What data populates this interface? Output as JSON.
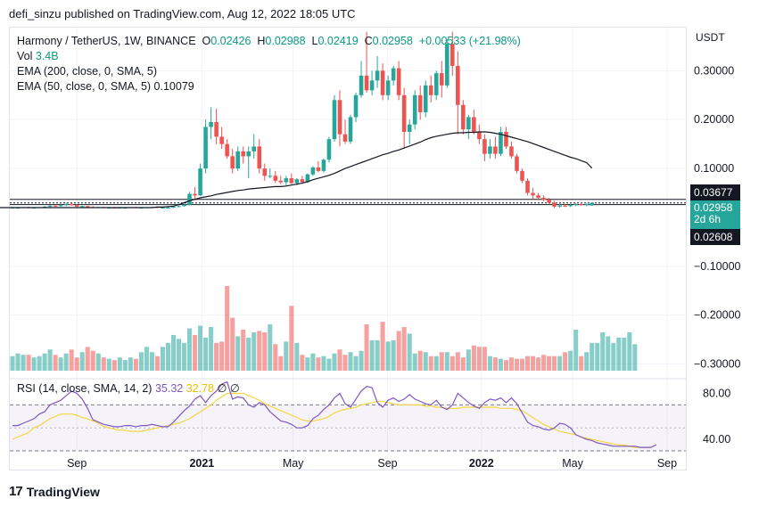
{
  "header": {
    "published": "defi_sinzu published on TradingView.com, Aug 12, 2022 18:05 UTC"
  },
  "legend": {
    "symbol": "Harmony / TetherUS, 1W, BINANCE",
    "o_label": "O",
    "o_value": "0.02426",
    "h_label": "H",
    "h_value": "0.02988",
    "l_label": "L",
    "l_value": "0.02419",
    "c_label": "C",
    "c_value": "0.02958",
    "change": "+0.00533 (+21.98%)",
    "vol_label": "Vol",
    "vol_value": "3.4B",
    "ema200_label": "EMA (200, close, 0, SMA, 5)",
    "ema50_label": "EMA (50, close, 0, SMA, 5)",
    "ema50_value": "0.10079"
  },
  "rsi_legend": {
    "label": "RSI (14, close, SMA, 14, 2)",
    "rsi_value": "35.32",
    "sma_value": "32.78",
    "extra": "∅ ∅"
  },
  "price_axis": {
    "unit": "USDT"
  },
  "price_tags": {
    "upper": "0.03677",
    "current": "0.02958",
    "countdown": "2d 6h",
    "lower": "0.02608"
  },
  "colors": {
    "up": "#26a69a",
    "down": "#ef5350",
    "ema50": "#131722",
    "rsi": "#7e57c2",
    "rsi_ma": "#f5d63d"
  },
  "footer": {
    "brand": "TradingView"
  },
  "chart_data": [
    {
      "type": "candlestick",
      "title": "Harmony / TetherUS, 1W, BINANCE",
      "ylabel": "USDT",
      "y_ticks": [
        0.3,
        0.2,
        0.1,
        -0.1,
        -0.2,
        -0.3
      ],
      "y_tick_labels": [
        "0.30000",
        "0.20000",
        "0.10000",
        "−0.10000",
        "−0.20000",
        "−0.30000"
      ],
      "ylim": [
        -0.33,
        0.39
      ],
      "x_tick_labels": [
        "Sep",
        "2021",
        "May",
        "Sep",
        "2022",
        "May",
        "Sep"
      ],
      "x_ticks": [
        12,
        35.3,
        52.3,
        69.9,
        87.4,
        104.4,
        122
      ],
      "candles": [
        [
          0.02,
          0.021,
          0.019,
          0.02
        ],
        [
          0.02,
          0.021,
          0.019,
          0.02
        ],
        [
          0.02,
          0.021,
          0.019,
          0.021
        ],
        [
          0.021,
          0.022,
          0.019,
          0.019
        ],
        [
          0.019,
          0.021,
          0.018,
          0.02
        ],
        [
          0.02,
          0.021,
          0.019,
          0.021
        ],
        [
          0.021,
          0.023,
          0.02,
          0.022
        ],
        [
          0.022,
          0.025,
          0.021,
          0.024
        ],
        [
          0.024,
          0.026,
          0.022,
          0.023
        ],
        [
          0.023,
          0.026,
          0.022,
          0.025
        ],
        [
          0.025,
          0.03,
          0.023,
          0.027
        ],
        [
          0.027,
          0.029,
          0.024,
          0.025
        ],
        [
          0.025,
          0.027,
          0.021,
          0.022
        ],
        [
          0.022,
          0.024,
          0.02,
          0.023
        ],
        [
          0.023,
          0.024,
          0.02,
          0.021
        ],
        [
          0.021,
          0.023,
          0.019,
          0.02
        ],
        [
          0.02,
          0.022,
          0.019,
          0.021
        ],
        [
          0.021,
          0.022,
          0.019,
          0.02
        ],
        [
          0.02,
          0.021,
          0.019,
          0.02
        ],
        [
          0.02,
          0.021,
          0.018,
          0.019
        ],
        [
          0.019,
          0.021,
          0.018,
          0.02
        ],
        [
          0.02,
          0.021,
          0.019,
          0.02
        ],
        [
          0.02,
          0.021,
          0.019,
          0.021
        ],
        [
          0.021,
          0.022,
          0.02,
          0.02
        ],
        [
          0.02,
          0.021,
          0.019,
          0.02
        ],
        [
          0.02,
          0.021,
          0.019,
          0.021
        ],
        [
          0.021,
          0.022,
          0.02,
          0.021
        ],
        [
          0.021,
          0.022,
          0.02,
          0.02
        ],
        [
          0.02,
          0.021,
          0.019,
          0.02
        ],
        [
          0.02,
          0.021,
          0.019,
          0.02
        ],
        [
          0.02,
          0.022,
          0.019,
          0.022
        ],
        [
          0.022,
          0.024,
          0.021,
          0.023
        ],
        [
          0.023,
          0.028,
          0.022,
          0.026
        ],
        [
          0.026,
          0.052,
          0.025,
          0.048
        ],
        [
          0.048,
          0.062,
          0.035,
          0.045
        ],
        [
          0.045,
          0.11,
          0.044,
          0.1
        ],
        [
          0.1,
          0.2,
          0.09,
          0.185
        ],
        [
          0.185,
          0.225,
          0.16,
          0.195
        ],
        [
          0.195,
          0.222,
          0.15,
          0.165
        ],
        [
          0.165,
          0.185,
          0.14,
          0.15
        ],
        [
          0.15,
          0.16,
          0.12,
          0.125
        ],
        [
          0.125,
          0.14,
          0.09,
          0.1
        ],
        [
          0.1,
          0.145,
          0.095,
          0.135
        ],
        [
          0.135,
          0.145,
          0.11,
          0.125
        ],
        [
          0.125,
          0.145,
          0.08,
          0.135
        ],
        [
          0.135,
          0.17,
          0.12,
          0.145
        ],
        [
          0.145,
          0.16,
          0.09,
          0.1
        ],
        [
          0.1,
          0.11,
          0.075,
          0.085
        ],
        [
          0.085,
          0.1,
          0.08,
          0.085
        ],
        [
          0.085,
          0.095,
          0.07,
          0.075
        ],
        [
          0.075,
          0.085,
          0.068,
          0.072
        ],
        [
          0.072,
          0.085,
          0.065,
          0.08
        ],
        [
          0.08,
          0.09,
          0.068,
          0.07
        ],
        [
          0.07,
          0.08,
          0.066,
          0.078
        ],
        [
          0.078,
          0.085,
          0.07,
          0.072
        ],
        [
          0.072,
          0.09,
          0.07,
          0.088
        ],
        [
          0.088,
          0.105,
          0.085,
          0.102
        ],
        [
          0.102,
          0.115,
          0.092,
          0.095
        ],
        [
          0.095,
          0.12,
          0.092,
          0.118
        ],
        [
          0.118,
          0.165,
          0.112,
          0.16
        ],
        [
          0.16,
          0.25,
          0.155,
          0.24
        ],
        [
          0.24,
          0.26,
          0.145,
          0.17
        ],
        [
          0.17,
          0.2,
          0.15,
          0.155
        ],
        [
          0.155,
          0.21,
          0.15,
          0.205
        ],
        [
          0.205,
          0.255,
          0.195,
          0.25
        ],
        [
          0.25,
          0.32,
          0.245,
          0.29
        ],
        [
          0.29,
          0.38,
          0.255,
          0.26
        ],
        [
          0.26,
          0.3,
          0.25,
          0.28
        ],
        [
          0.28,
          0.33,
          0.265,
          0.3
        ],
        [
          0.3,
          0.315,
          0.24,
          0.25
        ],
        [
          0.25,
          0.29,
          0.24,
          0.28
        ],
        [
          0.28,
          0.31,
          0.27,
          0.305
        ],
        [
          0.305,
          0.32,
          0.24,
          0.25
        ],
        [
          0.25,
          0.265,
          0.14,
          0.175
        ],
        [
          0.175,
          0.2,
          0.15,
          0.19
        ],
        [
          0.19,
          0.26,
          0.18,
          0.25
        ],
        [
          0.25,
          0.27,
          0.2,
          0.215
        ],
        [
          0.215,
          0.28,
          0.205,
          0.27
        ],
        [
          0.27,
          0.29,
          0.235,
          0.25
        ],
        [
          0.25,
          0.3,
          0.24,
          0.295
        ],
        [
          0.295,
          0.32,
          0.245,
          0.27
        ],
        [
          0.27,
          0.365,
          0.265,
          0.355
        ],
        [
          0.355,
          0.38,
          0.29,
          0.31
        ],
        [
          0.31,
          0.34,
          0.17,
          0.23
        ],
        [
          0.23,
          0.24,
          0.17,
          0.18
        ],
        [
          0.18,
          0.21,
          0.16,
          0.205
        ],
        [
          0.205,
          0.22,
          0.17,
          0.175
        ],
        [
          0.175,
          0.19,
          0.15,
          0.16
        ],
        [
          0.16,
          0.17,
          0.115,
          0.13
        ],
        [
          0.13,
          0.16,
          0.12,
          0.145
        ],
        [
          0.145,
          0.165,
          0.12,
          0.13
        ],
        [
          0.13,
          0.185,
          0.125,
          0.175
        ],
        [
          0.175,
          0.185,
          0.14,
          0.145
        ],
        [
          0.145,
          0.155,
          0.12,
          0.125
        ],
        [
          0.125,
          0.13,
          0.09,
          0.095
        ],
        [
          0.095,
          0.1,
          0.07,
          0.075
        ],
        [
          0.075,
          0.08,
          0.045,
          0.05
        ],
        [
          0.05,
          0.06,
          0.038,
          0.045
        ],
        [
          0.045,
          0.05,
          0.035,
          0.04
        ],
        [
          0.04,
          0.045,
          0.033,
          0.036
        ],
        [
          0.036,
          0.04,
          0.028,
          0.03
        ],
        [
          0.03,
          0.034,
          0.019,
          0.022
        ],
        [
          0.022,
          0.028,
          0.02,
          0.024
        ],
        [
          0.024,
          0.028,
          0.021,
          0.023
        ],
        [
          0.023,
          0.027,
          0.021,
          0.025
        ],
        [
          0.025,
          0.029,
          0.023,
          0.027
        ],
        [
          0.027,
          0.03,
          0.024,
          0.026
        ],
        [
          0.026,
          0.029,
          0.023,
          0.027
        ],
        [
          0.02426,
          0.02988,
          0.02419,
          0.02958
        ]
      ],
      "ema50": [
        0.02,
        0.02,
        0.02,
        0.02,
        0.02,
        0.02,
        0.02,
        0.02,
        0.02,
        0.02,
        0.02,
        0.02,
        0.02,
        0.02,
        0.02,
        0.02,
        0.02,
        0.02,
        0.02,
        0.02,
        0.02,
        0.02,
        0.02,
        0.02,
        0.02,
        0.02,
        0.02,
        0.02,
        0.02,
        0.02,
        0.02,
        0.021,
        0.021,
        0.022,
        0.023,
        0.026,
        0.03,
        0.034,
        0.037,
        0.04,
        0.042,
        0.044,
        0.047,
        0.049,
        0.051,
        0.053,
        0.055,
        0.056,
        0.058,
        0.059,
        0.06,
        0.061,
        0.062,
        0.063,
        0.063,
        0.064,
        0.066,
        0.068,
        0.07,
        0.073,
        0.077,
        0.08,
        0.083,
        0.086,
        0.09,
        0.095,
        0.1,
        0.104,
        0.108,
        0.112,
        0.116,
        0.12,
        0.124,
        0.128,
        0.131,
        0.135,
        0.138,
        0.142,
        0.146,
        0.15,
        0.154,
        0.159,
        0.163,
        0.166,
        0.168,
        0.17,
        0.172,
        0.173,
        0.173,
        0.174,
        0.174,
        0.175,
        0.175,
        0.174,
        0.172,
        0.17,
        0.167,
        0.164,
        0.161,
        0.158,
        0.155,
        0.151,
        0.147,
        0.143,
        0.139,
        0.135,
        0.131,
        0.127,
        0.123,
        0.12,
        0.116,
        0.112,
        0.10079
      ]
    },
    {
      "type": "bar",
      "title": "Vol",
      "values": [
        1.1,
        1.3,
        1.2,
        1.2,
        1.0,
        1.1,
        1.3,
        1.6,
        1.2,
        1.0,
        1.3,
        1.6,
        1.0,
        1.4,
        1.8,
        1.5,
        1.3,
        1.0,
        0.9,
        0.8,
        1.0,
        0.8,
        1.0,
        0.9,
        1.4,
        1.8,
        1.4,
        1.1,
        1.8,
        2.1,
        2.7,
        2.4,
        2.1,
        3.2,
        2.7,
        3.4,
        2.5,
        3.3,
        2.1,
        2.2,
        6.4,
        4.0,
        2.6,
        3.1,
        2.5,
        2.9,
        3.0,
        2.9,
        3.5,
        2.0,
        1.1,
        2.2,
        4.9,
        2.1,
        1.2,
        1.0,
        1.3,
        1.0,
        1.1,
        0.9,
        1.3,
        1.6,
        1.2,
        1.4,
        1.1,
        1.5,
        3.5,
        2.3,
        2.3,
        3.7,
        2.2,
        2.3,
        3.0,
        3.3,
        2.8,
        1.3,
        1.5,
        1.4,
        1.1,
        1.1,
        1.4,
        1.4,
        1.1,
        1.4,
        1.0,
        1.6,
        1.9,
        1.8,
        1.8,
        1.1,
        1.0,
        0.9,
        0.8,
        1.0,
        0.9,
        0.9,
        1.1,
        1.1,
        1.0,
        1.2,
        1.1,
        1.1,
        1.1,
        1.4,
        1.5,
        3.1,
        1.1,
        1.4,
        2.1,
        2.1,
        2.9,
        2.6,
        2.1,
        2.5,
        2.5,
        2.9,
        2.0
      ]
    },
    {
      "type": "line",
      "title": "RSI (14, close, SMA, 14, 2)",
      "y_ticks": [
        80,
        40
      ],
      "y_tick_labels": [
        "80.00",
        "40.00"
      ],
      "ylim": [
        30,
        92
      ],
      "band": [
        70,
        30
      ],
      "series": [
        {
          "values": [
            52,
            52,
            54,
            56,
            58,
            62,
            64,
            70,
            72,
            74,
            78,
            82,
            80,
            75,
            67,
            57,
            55,
            53,
            52,
            51,
            51,
            52,
            52,
            51,
            52,
            52,
            53,
            52,
            51,
            51,
            55,
            60,
            65,
            69,
            75,
            78,
            72,
            78,
            82,
            88,
            90,
            75,
            77,
            76,
            70,
            68,
            72,
            70,
            64,
            60,
            56,
            55,
            53,
            50,
            50,
            52,
            58,
            61,
            66,
            70,
            76,
            80,
            71,
            68,
            75,
            82,
            86,
            85,
            72,
            68,
            74,
            76,
            73,
            75,
            79,
            75,
            73,
            71,
            70,
            74,
            68,
            66,
            70,
            80,
            76,
            72,
            69,
            67,
            72,
            75,
            74,
            76,
            72,
            76,
            71,
            63,
            55,
            52,
            51,
            49,
            48,
            50,
            54,
            53,
            50,
            44,
            42,
            40,
            39,
            37,
            36,
            35,
            34,
            34,
            34,
            34,
            34,
            33,
            33,
            33,
            35.32
          ]
        },
        {
          "values": [
            40,
            42,
            44,
            46,
            50,
            52,
            55,
            58,
            60,
            62,
            62,
            62,
            61,
            59,
            58,
            56,
            54,
            51,
            50,
            49,
            48,
            48,
            47,
            47,
            47,
            48,
            49,
            50,
            51,
            52,
            53,
            54,
            56,
            58,
            61,
            64,
            67,
            70,
            74,
            77,
            80,
            80,
            80,
            80,
            78,
            76,
            74,
            71,
            69,
            67,
            65,
            63,
            61,
            59,
            57,
            56,
            56,
            57,
            58,
            60,
            63,
            65,
            66,
            67,
            68,
            70,
            71,
            72,
            73,
            73,
            72,
            71,
            70,
            70,
            70,
            70,
            70,
            69,
            69,
            68,
            68,
            67,
            67,
            67,
            68,
            68,
            68,
            68,
            68,
            68,
            68,
            67,
            67,
            67,
            66,
            65,
            62,
            59,
            56,
            53,
            51,
            49,
            47,
            46,
            45,
            44,
            42,
            41,
            40,
            39,
            38,
            37,
            36,
            35,
            35,
            34,
            33,
            33,
            33,
            32.78
          ]
        }
      ]
    }
  ]
}
